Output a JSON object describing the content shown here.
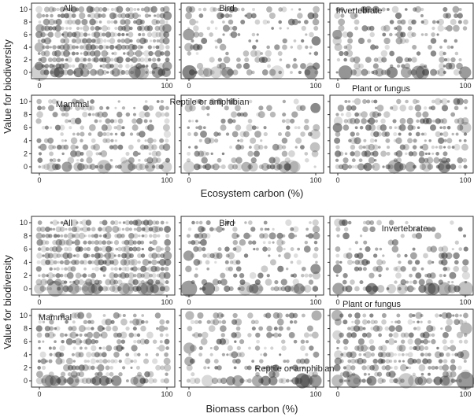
{
  "figure": {
    "groups": [
      {
        "id": "ecosystem",
        "xlabel": "Ecosystem carbon (%)",
        "ylabel": "Value for biodiversity"
      },
      {
        "id": "biomass",
        "xlabel": "Biomass carbon (%)",
        "ylabel": "Value for biodiversity"
      }
    ]
  },
  "chart_data": [
    {
      "type": "scatter",
      "group": "Ecosystem carbon",
      "panels": [
        "All",
        "Bird",
        "Invertebrate",
        "Mammal",
        "Reptile or amphibian",
        "Plant or fungus"
      ],
      "xlabel": "Ecosystem carbon (%)",
      "ylabel": "Value for biodiversity",
      "xlim": [
        0,
        100
      ],
      "ylim": [
        0,
        10
      ],
      "x_ticks": [
        0,
        100
      ],
      "y_ticks": [
        0,
        2,
        4,
        6,
        8,
        10
      ],
      "y_tick_labels_shown_on": "left column only",
      "point_style": "semi-transparent grey circles, size proportional to frequency",
      "columns": [
        0,
        3,
        6,
        9,
        12,
        15,
        18,
        21,
        24,
        27,
        30,
        33,
        36,
        39,
        42,
        45,
        48,
        51,
        54,
        57,
        60,
        63,
        66,
        69,
        72,
        75,
        78,
        81,
        84,
        87,
        90,
        93,
        96,
        100
      ],
      "rows": [
        0,
        1,
        2,
        3,
        4,
        5,
        6,
        7,
        8,
        9,
        10
      ]
    },
    {
      "type": "scatter",
      "group": "Biomass carbon",
      "panels": [
        "All",
        "Bird",
        "Invertebrate",
        "Mammal",
        "Reptile or amphibian",
        "Plant or fungus"
      ],
      "xlabel": "Biomass carbon (%)",
      "ylabel": "Value for biodiversity",
      "xlim": [
        0,
        100
      ],
      "ylim": [
        0,
        10
      ],
      "x_ticks": [
        0,
        100
      ],
      "y_ticks": [
        0,
        2,
        4,
        6,
        8,
        10
      ],
      "y_tick_labels_shown_on": "left column only",
      "point_style": "semi-transparent grey circles, size proportional to frequency",
      "columns": [
        0,
        3,
        6,
        9,
        12,
        15,
        18,
        21,
        24,
        27,
        30,
        33,
        36,
        39,
        42,
        45,
        48,
        51,
        54,
        57,
        60,
        63,
        66,
        69,
        72,
        75,
        78,
        81,
        84,
        87,
        90,
        93,
        96,
        100
      ],
      "rows": [
        0,
        1,
        2,
        3,
        4,
        5,
        6,
        7,
        8,
        9,
        10
      ]
    }
  ]
}
